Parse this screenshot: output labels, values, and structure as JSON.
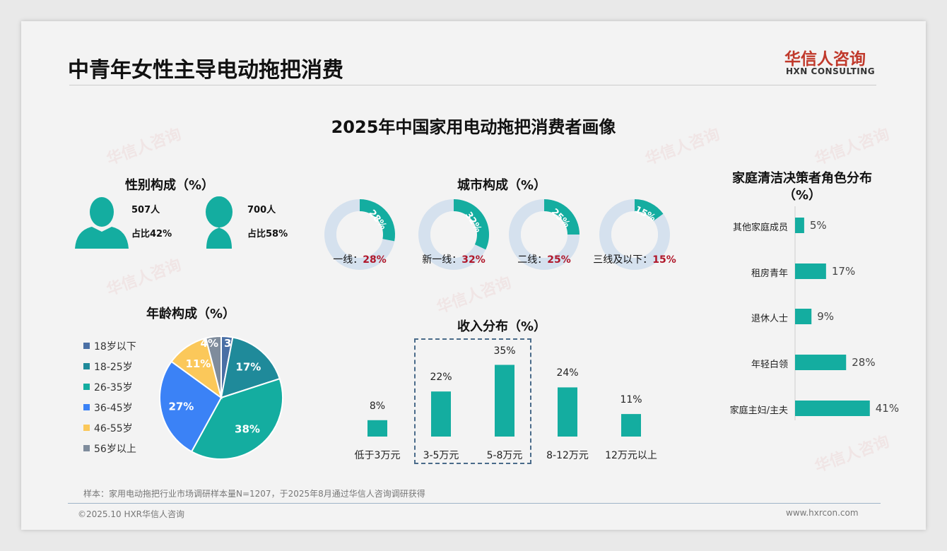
{
  "header": {
    "title": "中青年女性主导电动拖把消费",
    "logo_cn": "华信人咨询",
    "logo_en": "HXN CONSULTING"
  },
  "main_title": "2025年中国家用电动拖把消费者画像",
  "watermark": {
    "cn": "华信人咨询",
    "en": "HXN CONSULTING"
  },
  "gender": {
    "title": "性别构成（%）",
    "male": {
      "count": "507人",
      "share": "占比42%"
    },
    "female": {
      "count": "700人",
      "share": "占比58%"
    }
  },
  "colors": {
    "teal": "#14ada0",
    "light": "#d5e1ee",
    "red": "#b0172a"
  },
  "chart_data": [
    {
      "type": "donut",
      "title": "城市构成（%）",
      "categories": [
        "一线",
        "新一线",
        "二线",
        "三线及以下"
      ],
      "labels": [
        "一线：",
        "新一线：",
        "二线：",
        "三线及以下："
      ],
      "values": [
        28,
        32,
        25,
        15
      ],
      "value_labels": [
        "28%",
        "32%",
        "25%",
        "15%"
      ]
    },
    {
      "type": "pie",
      "title": "年龄构成（%）",
      "categories": [
        "18岁以下",
        "18-25岁",
        "26-35岁",
        "36-45岁",
        "46-55岁",
        "56岁以上"
      ],
      "values": [
        3,
        17,
        38,
        27,
        11,
        4
      ],
      "value_labels": [
        "3%",
        "17%",
        "38%",
        "27%",
        "11%",
        "4%"
      ],
      "colors": [
        "#4a6fa5",
        "#1f8a9a",
        "#14ada0",
        "#3b82f6",
        "#fbc85a",
        "#7f8c9c"
      ],
      "legend": "left"
    },
    {
      "type": "bar",
      "title": "收入分布（%）",
      "categories": [
        "低于3万元",
        "3-5万元",
        "5-8万元",
        "8-12万元",
        "12万元以上"
      ],
      "values": [
        8,
        22,
        35,
        24,
        11
      ],
      "value_labels": [
        "8%",
        "22%",
        "35%",
        "24%",
        "11%"
      ],
      "highlight": [
        "3-5万元",
        "5-8万元"
      ]
    },
    {
      "type": "bar",
      "orientation": "horizontal",
      "title": "家庭清洁决策者角色分布",
      "title2": "（%）",
      "categories": [
        "其他家庭成员",
        "租房青年",
        "退休人士",
        "年轻白领",
        "家庭主妇/主夫"
      ],
      "values": [
        5,
        17,
        9,
        28,
        41
      ],
      "value_labels": [
        "5%",
        "17%",
        "9%",
        "28%",
        "41%"
      ]
    }
  ],
  "footer": {
    "note": "样本：家用电动拖把行业市场调研样本量N=1207，于2025年8月通过华信人咨询调研获得",
    "copyright": "©2025.10 HXR华信人咨询",
    "site": "www.hxrcon.com"
  }
}
